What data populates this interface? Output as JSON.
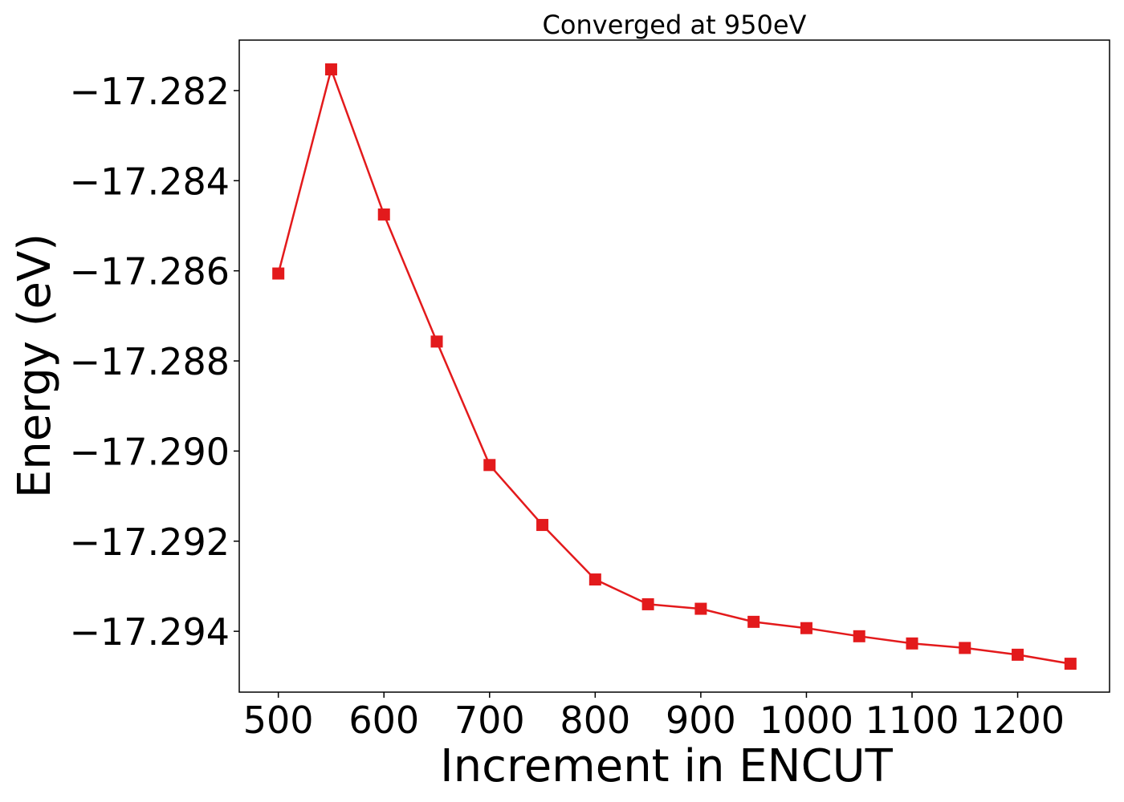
{
  "chart_data": {
    "type": "line",
    "title": "Converged at 950eV",
    "xlabel": "Increment in ENCUT",
    "ylabel": "Energy (eV)",
    "xlim": [
      463,
      1287
    ],
    "ylim": [
      -17.29535,
      -17.28088
    ],
    "xticks": [
      500,
      600,
      700,
      800,
      900,
      1000,
      1100,
      1200
    ],
    "yticks": [
      -17.282,
      -17.284,
      -17.286,
      -17.288,
      -17.29,
      -17.292,
      -17.294
    ],
    "ytick_labels": [
      "−17.282",
      "−17.284",
      "−17.286",
      "−17.288",
      "−17.290",
      "−17.292",
      "−17.294"
    ],
    "grid": false,
    "legend": false,
    "series": [
      {
        "color": "#e31a1c",
        "marker": "square",
        "x": [
          500,
          550,
          600,
          650,
          700,
          750,
          800,
          850,
          900,
          950,
          1000,
          1050,
          1100,
          1150,
          1200,
          1250
        ],
        "y": [
          -17.28606,
          -17.28153,
          -17.28475,
          -17.28757,
          -17.29031,
          -17.29164,
          -17.29285,
          -17.2934,
          -17.2935,
          -17.29379,
          -17.29393,
          -17.29411,
          -17.29427,
          -17.29437,
          -17.29452,
          -17.29472
        ]
      }
    ]
  }
}
